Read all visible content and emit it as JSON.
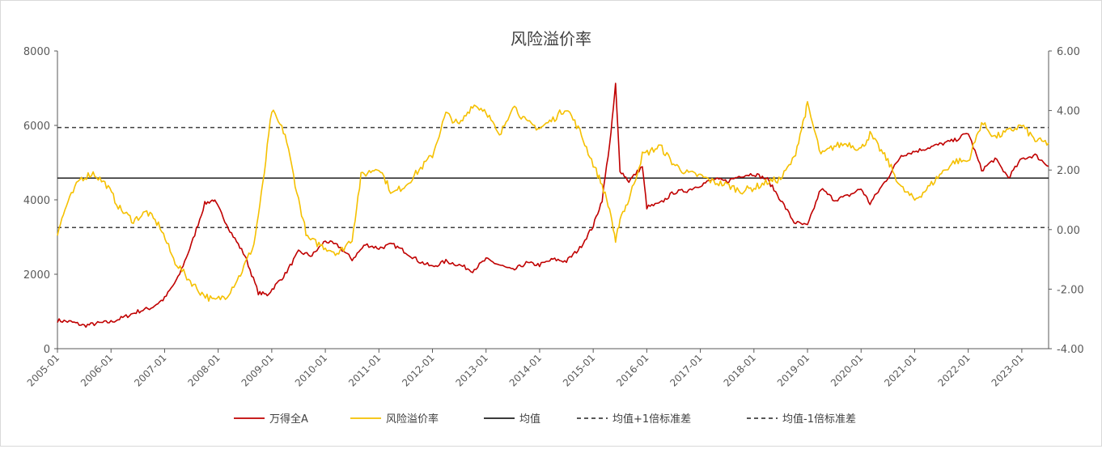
{
  "chart_data": {
    "type": "line",
    "title": "风险溢价率",
    "xlabel": "",
    "ylabel": "",
    "y2label": "",
    "x_start": "2005-01",
    "x_end": "2023-07",
    "ylim": [
      0,
      8000
    ],
    "y2lim": [
      -4.0,
      6.0
    ],
    "left_ticks": [
      "0",
      "2000",
      "4000",
      "6000",
      "8000"
    ],
    "right_ticks": [
      "-4.00",
      "-2.00",
      "0.00",
      "2.00",
      "4.00",
      "6.00"
    ],
    "x_ticks": [
      "2005-01",
      "2006-01",
      "2007-01",
      "2008-01",
      "2009-01",
      "2010-01",
      "2011-01",
      "2012-01",
      "2013-01",
      "2014-01",
      "2015-01",
      "2016-01",
      "2017-01",
      "2018-01",
      "2019-01",
      "2020-01",
      "2021-01",
      "2022-01",
      "2023-01"
    ],
    "grid": false,
    "legend_position": "bottom",
    "series": [
      {
        "name": "万得全A",
        "axis": "left",
        "color": "#c00000",
        "style": "solid",
        "x": [
          "2005-01",
          "2005-04",
          "2005-07",
          "2005-10",
          "2006-01",
          "2006-04",
          "2006-07",
          "2006-10",
          "2007-01",
          "2007-04",
          "2007-07",
          "2007-10",
          "2007-12",
          "2008-01",
          "2008-04",
          "2008-07",
          "2008-10",
          "2008-12",
          "2009-04",
          "2009-07",
          "2009-10",
          "2010-01",
          "2010-04",
          "2010-07",
          "2010-10",
          "2011-01",
          "2011-04",
          "2011-07",
          "2011-10",
          "2012-01",
          "2012-04",
          "2012-07",
          "2012-10",
          "2013-01",
          "2013-04",
          "2013-07",
          "2013-10",
          "2014-01",
          "2014-04",
          "2014-07",
          "2014-10",
          "2015-01",
          "2015-03",
          "2015-05",
          "2015-06",
          "2015-07",
          "2015-09",
          "2015-12",
          "2016-01",
          "2016-04",
          "2016-07",
          "2016-10",
          "2017-01",
          "2017-04",
          "2017-07",
          "2017-10",
          "2018-01",
          "2018-04",
          "2018-07",
          "2018-10",
          "2019-01",
          "2019-04",
          "2019-07",
          "2019-10",
          "2020-01",
          "2020-03",
          "2020-07",
          "2020-10",
          "2021-01",
          "2021-04",
          "2021-07",
          "2021-10",
          "2022-01",
          "2022-04",
          "2022-07",
          "2022-10",
          "2023-01",
          "2023-04",
          "2023-07"
        ],
        "values": [
          760,
          720,
          620,
          680,
          720,
          850,
          1000,
          1100,
          1350,
          1900,
          2800,
          3900,
          4000,
          3800,
          3100,
          2500,
          1500,
          1450,
          2000,
          2600,
          2500,
          2900,
          2750,
          2400,
          2800,
          2700,
          2800,
          2600,
          2350,
          2200,
          2350,
          2250,
          2100,
          2400,
          2250,
          2100,
          2300,
          2250,
          2400,
          2350,
          2700,
          3300,
          4000,
          5800,
          7100,
          4800,
          4500,
          4900,
          3800,
          3900,
          4200,
          4250,
          4400,
          4550,
          4500,
          4650,
          4700,
          4550,
          4000,
          3400,
          3300,
          4300,
          4000,
          4100,
          4300,
          3900,
          4600,
          5200,
          5300,
          5400,
          5500,
          5600,
          5800,
          4800,
          5100,
          4600,
          5100,
          5200,
          4900
        ]
      },
      {
        "name": "风险溢价率",
        "axis": "right",
        "color": "#f5c000",
        "style": "solid",
        "x": [
          "2005-01",
          "2005-03",
          "2005-06",
          "2005-09",
          "2005-12",
          "2006-03",
          "2006-06",
          "2006-09",
          "2006-12",
          "2007-03",
          "2007-06",
          "2007-09",
          "2007-12",
          "2008-03",
          "2008-06",
          "2008-09",
          "2008-11",
          "2009-01",
          "2009-04",
          "2009-07",
          "2009-09",
          "2010-01",
          "2010-04",
          "2010-07",
          "2010-09",
          "2011-01",
          "2011-04",
          "2011-07",
          "2011-10",
          "2012-01",
          "2012-04",
          "2012-07",
          "2012-10",
          "2013-01",
          "2013-04",
          "2013-07",
          "2013-10",
          "2014-01",
          "2014-04",
          "2014-07",
          "2014-10",
          "2015-01",
          "2015-03",
          "2015-05",
          "2015-06",
          "2015-07",
          "2015-09",
          "2015-12",
          "2016-04",
          "2016-07",
          "2016-10",
          "2017-01",
          "2017-04",
          "2017-07",
          "2017-10",
          "2018-01",
          "2018-04",
          "2018-07",
          "2018-10",
          "2018-12",
          "2019-01",
          "2019-04",
          "2019-07",
          "2019-10",
          "2020-01",
          "2020-03",
          "2020-07",
          "2020-10",
          "2021-01",
          "2021-04",
          "2021-07",
          "2021-10",
          "2022-01",
          "2022-04",
          "2022-07",
          "2022-10",
          "2023-01",
          "2023-04",
          "2023-07"
        ],
        "values": [
          -0.1,
          0.8,
          1.7,
          1.9,
          1.5,
          0.7,
          0.3,
          0.6,
          0.1,
          -1.0,
          -1.6,
          -2.1,
          -2.4,
          -2.2,
          -1.5,
          -0.5,
          1.5,
          4.0,
          3.2,
          1.0,
          -0.3,
          -0.6,
          -0.8,
          -0.3,
          1.8,
          2.1,
          1.2,
          1.5,
          2.0,
          2.5,
          3.9,
          3.5,
          4.2,
          4.0,
          3.1,
          4.2,
          3.6,
          3.4,
          3.7,
          4.1,
          3.3,
          2.2,
          1.5,
          0.5,
          -0.5,
          0.4,
          1.0,
          2.5,
          2.8,
          2.2,
          1.9,
          1.8,
          1.6,
          1.5,
          1.3,
          1.4,
          1.6,
          1.7,
          2.4,
          3.6,
          4.2,
          2.5,
          2.8,
          2.9,
          2.7,
          3.2,
          2.3,
          1.4,
          1.0,
          1.4,
          1.9,
          2.3,
          2.3,
          3.6,
          3.1,
          3.3,
          3.5,
          3.0,
          2.9
        ]
      },
      {
        "name": "均值",
        "axis": "right",
        "color": "#1f1f1f",
        "style": "solid",
        "x": [
          "2005-01",
          "2023-07"
        ],
        "values": [
          1.73,
          1.73
        ]
      },
      {
        "name": "均值+1倍标准差",
        "axis": "right",
        "color": "#404040",
        "style": "dashed",
        "x": [
          "2005-01",
          "2023-07"
        ],
        "values": [
          3.43,
          3.43
        ]
      },
      {
        "name": "均值-1倍标准差",
        "axis": "right",
        "color": "#404040",
        "style": "dashed",
        "x": [
          "2005-01",
          "2023-07"
        ],
        "values": [
          0.07,
          0.07
        ]
      }
    ]
  }
}
